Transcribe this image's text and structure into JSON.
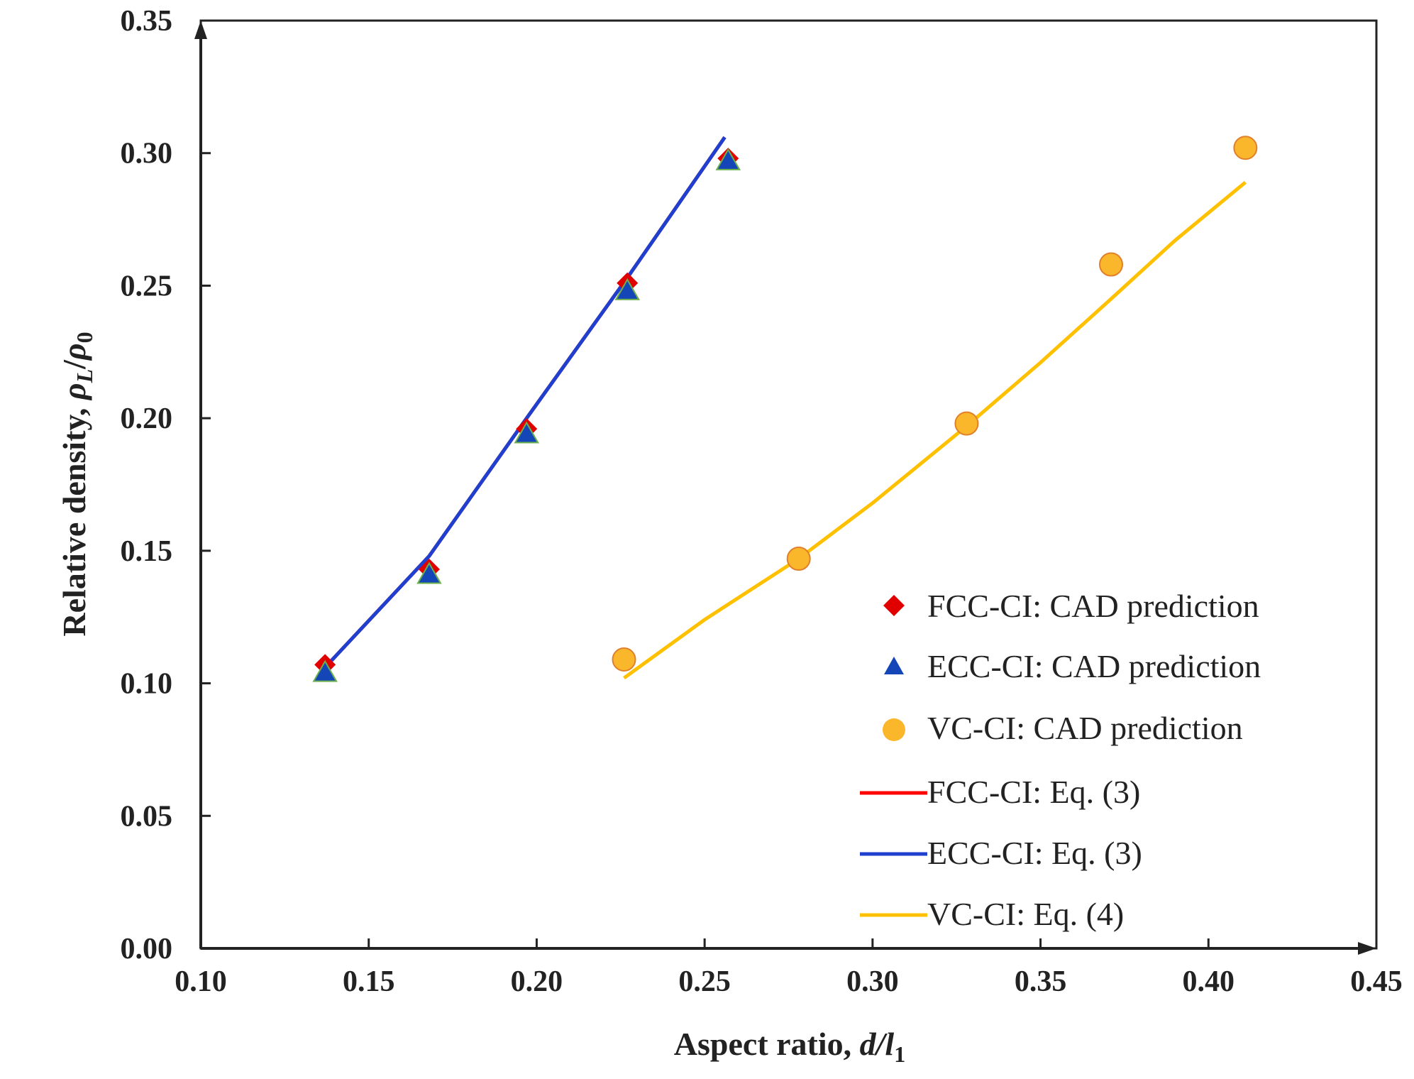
{
  "chart_data": {
    "type": "scatter",
    "title": "",
    "xlabel": {
      "prefix": "Aspect ratio, ",
      "var": "d/l",
      "sub": "1"
    },
    "ylabel": {
      "prefix": "Relative density, ",
      "num": "ρ",
      "num_sub": "L",
      "slash": "/",
      "den": "ρ",
      "den_sub": "0"
    },
    "xlim": [
      0.1,
      0.45
    ],
    "ylim": [
      0.0,
      0.35
    ],
    "xticks": [
      "0.10",
      "0.15",
      "0.20",
      "0.25",
      "0.30",
      "0.35",
      "0.40",
      "0.45"
    ],
    "yticks": [
      "0.00",
      "0.05",
      "0.10",
      "0.15",
      "0.20",
      "0.25",
      "0.30",
      "0.35"
    ],
    "grid": false,
    "legend_position": "bottom-right",
    "series": [
      {
        "name": "FCC-CI: CAD prediction",
        "kind": "marker",
        "marker": "diamond",
        "color": "#e00000",
        "x": [
          0.137,
          0.168,
          0.197,
          0.227,
          0.257
        ],
        "y": [
          0.107,
          0.143,
          0.196,
          0.251,
          0.298
        ]
      },
      {
        "name": "ECC-CI: CAD prediction",
        "kind": "marker",
        "marker": "triangle",
        "color": "#1546b8",
        "edge": "#6ab04c",
        "x": [
          0.137,
          0.168,
          0.197,
          0.227,
          0.257
        ],
        "y": [
          0.104,
          0.141,
          0.194,
          0.248,
          0.297
        ]
      },
      {
        "name": "VC-CI: CAD prediction",
        "kind": "marker",
        "marker": "circle",
        "color": "#fbb72c",
        "edge": "#e0802a",
        "x": [
          0.226,
          0.278,
          0.328,
          0.371,
          0.411
        ],
        "y": [
          0.109,
          0.147,
          0.198,
          0.258,
          0.302
        ]
      },
      {
        "name": "FCC-CI: Eq. (3)",
        "kind": "line",
        "color": "#ff0000",
        "x": [
          0.137,
          0.168,
          0.197,
          0.227,
          0.256
        ],
        "y": [
          0.106,
          0.148,
          0.2,
          0.253,
          0.306
        ]
      },
      {
        "name": "ECC-CI: Eq. (3)",
        "kind": "line",
        "color": "#1f3fcf",
        "x": [
          0.137,
          0.168,
          0.197,
          0.227,
          0.256
        ],
        "y": [
          0.106,
          0.148,
          0.2,
          0.253,
          0.306
        ]
      },
      {
        "name": "VC-CI: Eq. (4)",
        "kind": "line",
        "color": "#ffc000",
        "x": [
          0.226,
          0.25,
          0.278,
          0.3,
          0.328,
          0.35,
          0.371,
          0.39,
          0.411
        ],
        "y": [
          0.102,
          0.124,
          0.147,
          0.168,
          0.197,
          0.221,
          0.245,
          0.267,
          0.289
        ]
      }
    ]
  }
}
